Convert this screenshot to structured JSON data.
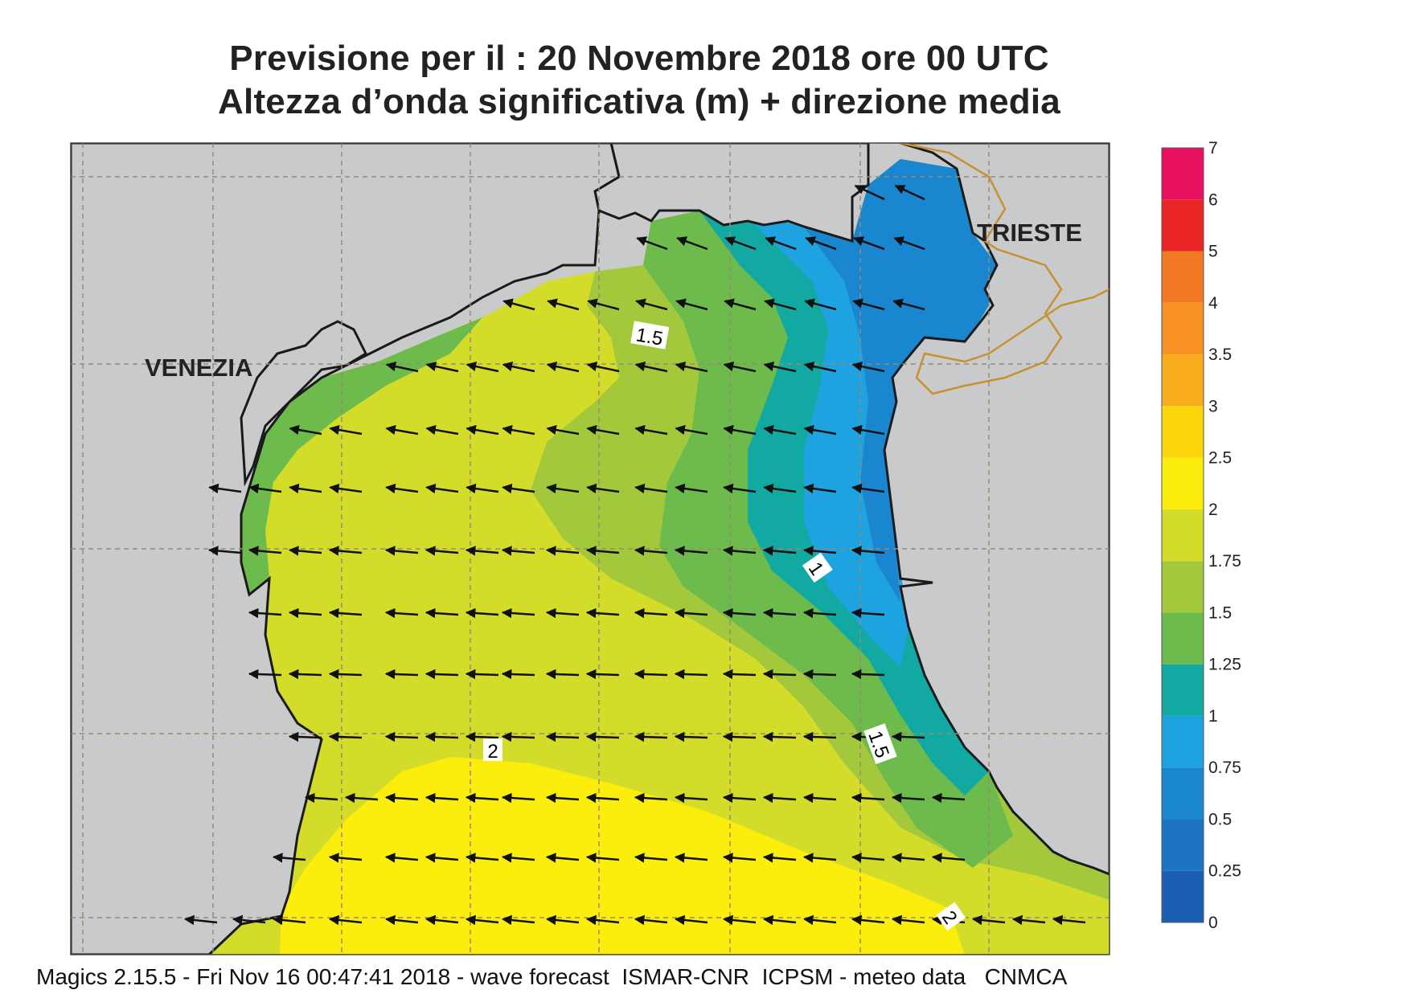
{
  "title": {
    "line1": "Previsione per il  :  20 Novembre  2018   ore 00 UTC",
    "line2": "Altezza d’onda significativa (m) + direzione media"
  },
  "cities": {
    "venezia": "VENEZIA",
    "trieste": "TRIESTE"
  },
  "contour_labels": {
    "c1": "1.5",
    "c2": "1",
    "c3": "1.5",
    "c4": "2",
    "c5": "2"
  },
  "footer": "Magics 2.15.5 - Fri Nov 16 00:47:41 2018 - wave forecast  ISMAR-CNR  ICPSM - meteo data   CNMCA",
  "colorbar": {
    "labels": [
      "0",
      "0.25",
      "0.5",
      "0.75",
      "1",
      "1.25",
      "1.5",
      "1.75",
      "2",
      "2.5",
      "3",
      "3.5",
      "4",
      "5",
      "6",
      "7"
    ],
    "colors": [
      "#1a5fb4",
      "#1c73c4",
      "#1b86d0",
      "#1ea3e0",
      "#12a9a3",
      "#6cbb4c",
      "#a3c83c",
      "#d4dc2a",
      "#fbee0c",
      "#fad60b",
      "#f8ae1c",
      "#f89225",
      "#f37a25",
      "#ea2525",
      "#e8105e"
    ]
  },
  "colors": {
    "land": "#c8cacb",
    "coast": "#1a1a1a",
    "grid": "#9a8a70",
    "border": "#c8902f"
  }
}
